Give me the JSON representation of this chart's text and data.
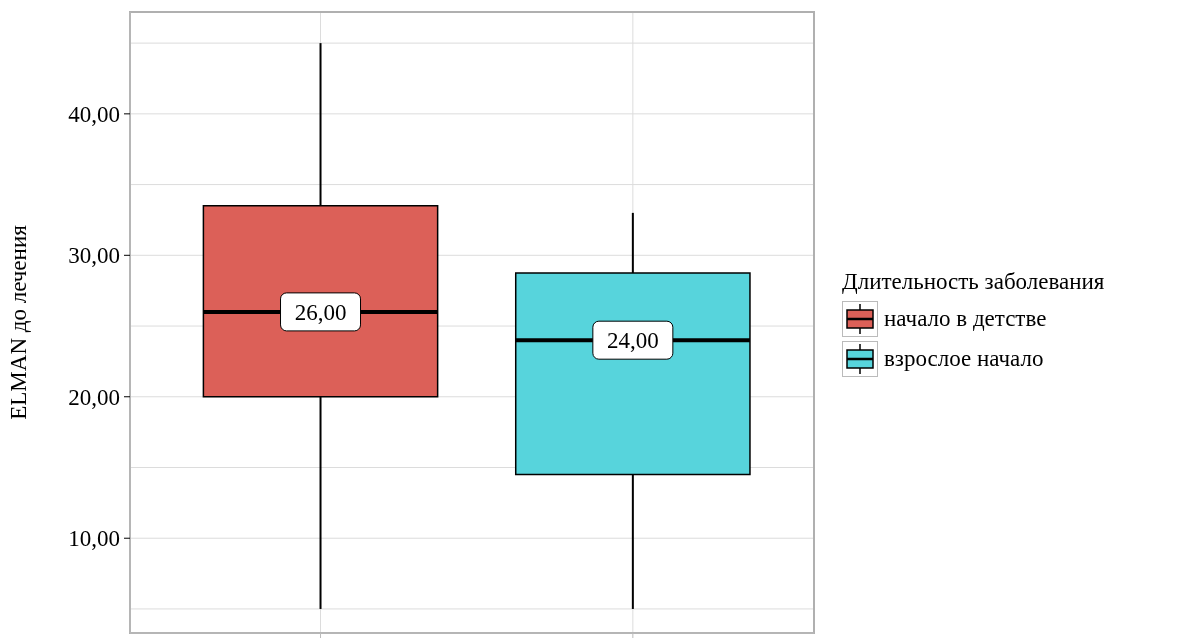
{
  "chart_data": {
    "type": "box",
    "ylabel": "ELMAN до лечения",
    "legend_title": "Длительность заболевания",
    "categories": [
      null,
      null
    ],
    "series": [
      {
        "name": "начало в детстве",
        "color": "#dc6058",
        "boxes": [
          {
            "low": 5,
            "q1": 20,
            "median": 26,
            "q3": 33.5,
            "high": 45
          },
          null
        ],
        "value_labels": [
          "26,00",
          null
        ]
      },
      {
        "name": "взрослое начало",
        "color": "#57d4dc",
        "boxes": [
          null,
          {
            "low": 5,
            "q1": 14.5,
            "median": 24,
            "q3": 28.75,
            "high": 33
          }
        ],
        "value_labels": [
          null,
          "24,00"
        ]
      }
    ],
    "ylim": [
      3.3,
      47.2
    ],
    "yticks": [
      {
        "value": 5,
        "label": null
      },
      {
        "value": 10,
        "label": "10,00"
      },
      {
        "value": 15,
        "label": null
      },
      {
        "value": 20,
        "label": "20,00"
      },
      {
        "value": 25,
        "label": null
      },
      {
        "value": 30,
        "label": "30,00"
      },
      {
        "value": 35,
        "label": null
      },
      {
        "value": 40,
        "label": "40,00"
      },
      {
        "value": 45,
        "label": null
      }
    ],
    "grid": true,
    "legend": "right"
  }
}
